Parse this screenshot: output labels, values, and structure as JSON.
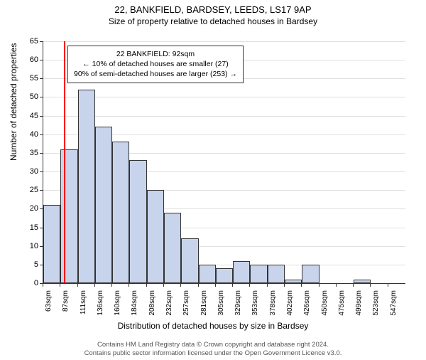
{
  "title": "22, BANKFIELD, BARDSEY, LEEDS, LS17 9AP",
  "subtitle": "Size of property relative to detached houses in Bardsey",
  "ylabel": "Number of detached properties",
  "xlabel": "Distribution of detached houses by size in Bardsey",
  "info_box": {
    "line1": "22 BANKFIELD: 92sqm",
    "line2": "← 10% of detached houses are smaller (27)",
    "line3": "90% of semi-detached houses are larger (253) →"
  },
  "footer": {
    "line1": "Contains HM Land Registry data © Crown copyright and database right 2024.",
    "line2": "Contains public sector information licensed under the Open Government Licence v3.0."
  },
  "chart": {
    "type": "histogram",
    "ylim": [
      0,
      65
    ],
    "ytick_step": 5,
    "bar_fill": "#c8d4ec",
    "bar_border": "#333333",
    "grid_color": "#e0e0e0",
    "background": "#ffffff",
    "marker_color": "#ff0000",
    "marker_x_value": 92,
    "x_start": 63,
    "x_step": 24.2,
    "x_labels": [
      "63sqm",
      "87sqm",
      "111sqm",
      "136sqm",
      "160sqm",
      "184sqm",
      "208sqm",
      "232sqm",
      "257sqm",
      "281sqm",
      "305sqm",
      "329sqm",
      "353sqm",
      "378sqm",
      "402sqm",
      "426sqm",
      "450sqm",
      "475sqm",
      "499sqm",
      "523sqm",
      "547sqm"
    ],
    "values": [
      21,
      36,
      52,
      42,
      38,
      33,
      25,
      19,
      12,
      5,
      4,
      6,
      5,
      5,
      1,
      5,
      0,
      0,
      1,
      0,
      0
    ],
    "title_fontsize": 13,
    "subtitle_fontsize": 12,
    "label_fontsize": 12,
    "tick_fontsize": 11
  }
}
